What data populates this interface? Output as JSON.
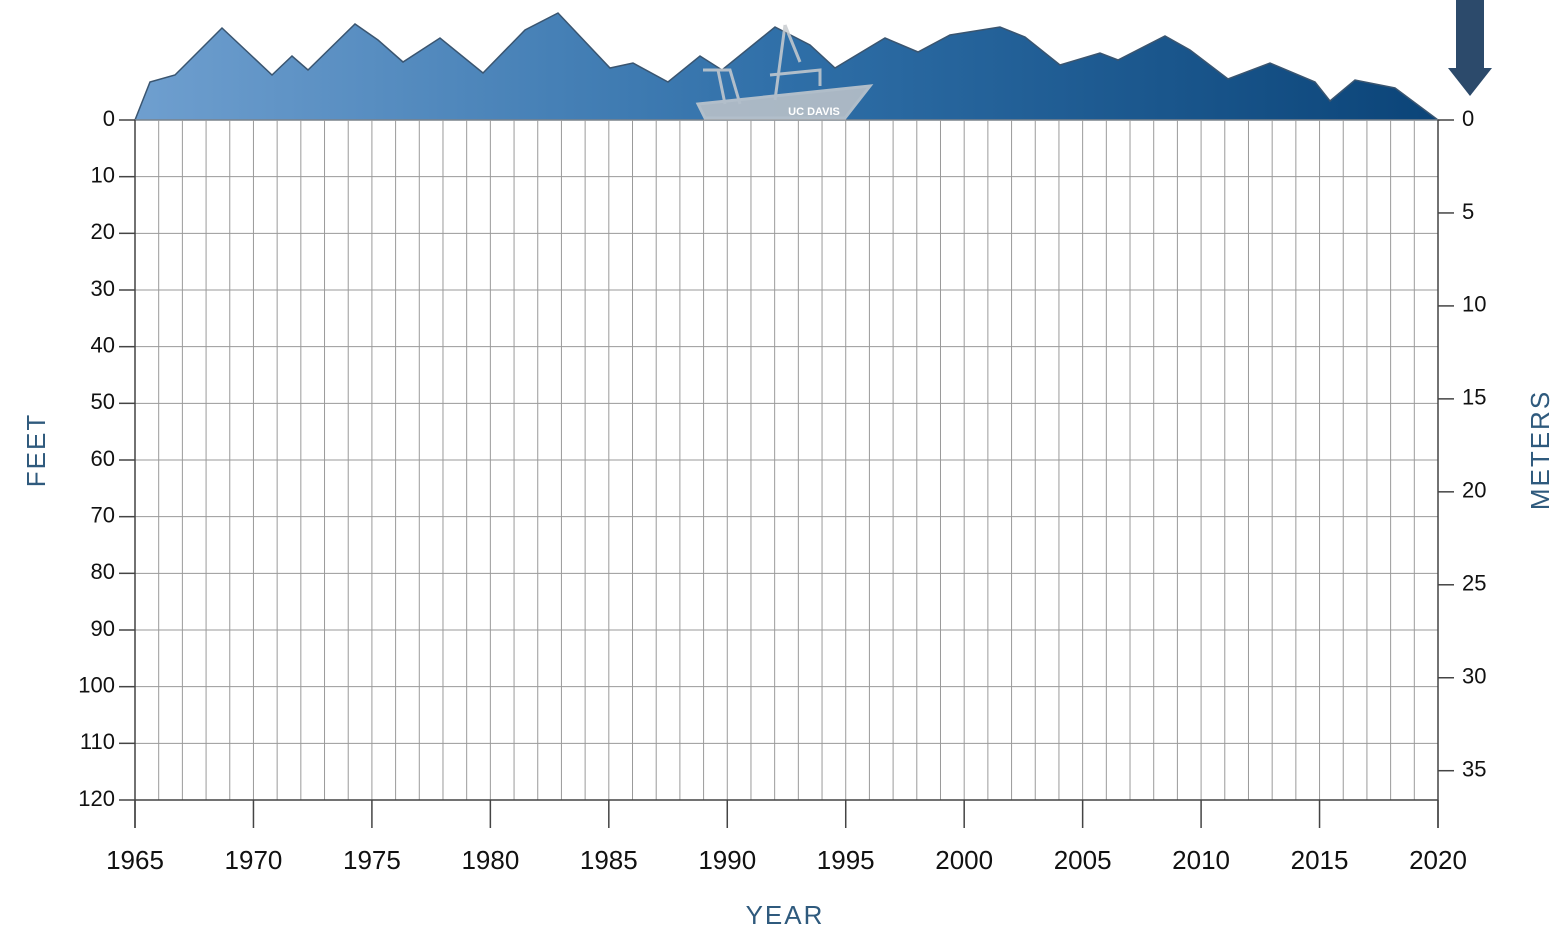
{
  "chart_data": {
    "type": "line",
    "x_label": "YEAR",
    "y_label": "FEET",
    "y2_label": "METERS",
    "logo_text": "UC DAVIS",
    "xlim": [
      1965,
      2020
    ],
    "xticks": [
      1965,
      1970,
      1975,
      1980,
      1985,
      1990,
      1995,
      2000,
      2005,
      2010,
      2015,
      2020
    ],
    "x_minor_ticks": [
      1965,
      1966,
      1967,
      1968,
      1969,
      1970,
      1971,
      1972,
      1973,
      1974,
      1975,
      1976,
      1977,
      1978,
      1979,
      1980,
      1981,
      1982,
      1983,
      1984,
      1985,
      1986,
      1987,
      1988,
      1989,
      1990,
      1991,
      1992,
      1993,
      1994,
      1995,
      1996,
      1997,
      1998,
      1999,
      2000,
      2001,
      2002,
      2003,
      2004,
      2005,
      2006,
      2007,
      2008,
      2009,
      2010,
      2011,
      2012,
      2013,
      2014,
      2015,
      2016,
      2017,
      2018,
      2019,
      2020
    ],
    "ylim": [
      0,
      120
    ],
    "yticks": [
      0,
      10,
      20,
      30,
      40,
      50,
      60,
      70,
      80,
      90,
      100,
      110,
      120
    ],
    "y2lim": [
      0,
      36.576
    ],
    "y2ticks": [
      0,
      5,
      10,
      15,
      20,
      25,
      30,
      35
    ],
    "y_inverted": true,
    "grid": true
  }
}
